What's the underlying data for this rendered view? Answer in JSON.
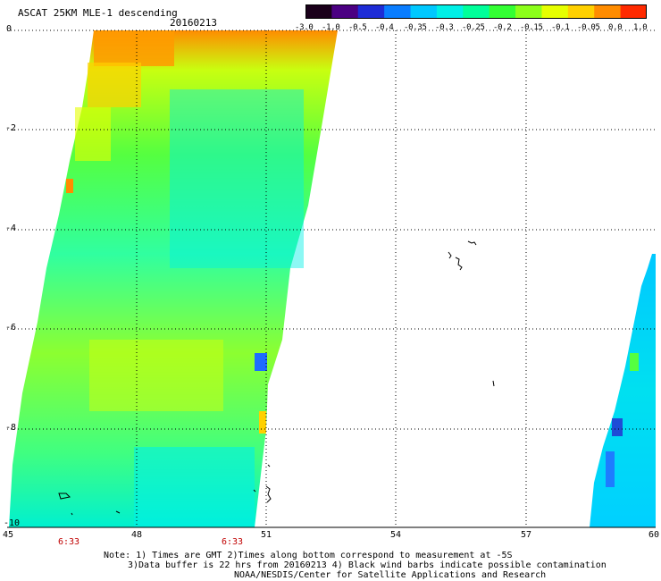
{
  "header": {
    "title": "ASCAT 25KM MLE-1 descending",
    "date": "20160213"
  },
  "colorbar": {
    "labels": [
      "-3.0",
      "-1.0",
      "-0.5",
      "-0.4",
      "-0.35",
      "-0.3",
      "-0.25",
      "-0.2",
      "-0.15",
      "-0.1",
      "-0.05",
      "0.0",
      "1.0"
    ],
    "colors": [
      "#1a001a",
      "#4b0082",
      "#1e2cd6",
      "#0a7dff",
      "#00c8ff",
      "#00f0e6",
      "#00ff9a",
      "#33ff33",
      "#8cff1a",
      "#e6ff00",
      "#ffd000",
      "#ff8c00",
      "#ff2a00"
    ]
  },
  "map": {
    "lat_labels": [
      "0",
      "-2",
      "-4",
      "-6",
      "-8",
      "-10"
    ],
    "lon_labels": [
      "45",
      "48",
      "51",
      "54",
      "57",
      "60"
    ],
    "time_labels": [
      "6:33",
      "6:33"
    ]
  },
  "footer": {
    "line1": "Note: 1) Times are GMT 2)Times along bottom correspond to measurement at -5S",
    "line2": "3)Data buffer is 22 hrs from 20160213 4) Black wind barbs indicate possible contamination",
    "line3": "NOAA/NESDIS/Center for Satellite Applications and Research"
  }
}
